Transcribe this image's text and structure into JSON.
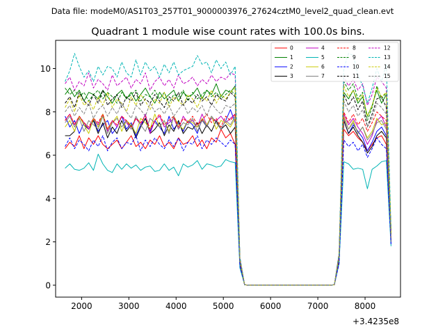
{
  "figure": {
    "suptitle": "Data file: modeM0/AS1T03_257T01_9000003976_27624cztM0_level2_quad_clean.evt"
  },
  "chart_data": {
    "type": "line",
    "title": "Quadrant 1 module wise count rates with 100.0s bins.",
    "xlabel": "",
    "ylabel": "",
    "x_offset_label": "+3.4235e8",
    "xlim": [
      1450,
      8750
    ],
    "ylim": [
      -0.55,
      11.3
    ],
    "xticks": [
      2000,
      3000,
      4000,
      5000,
      6000,
      7000,
      8000
    ],
    "yticks": [
      0,
      2,
      4,
      6,
      8,
      10
    ],
    "legend_position": "upper-right",
    "legend_columns": 4,
    "x": [
      1650,
      1750,
      1850,
      1950,
      2050,
      2150,
      2250,
      2350,
      2450,
      2550,
      2650,
      2750,
      2850,
      2950,
      3050,
      3150,
      3250,
      3350,
      3450,
      3550,
      3650,
      3750,
      3850,
      3950,
      4050,
      4150,
      4250,
      4350,
      4450,
      4550,
      4650,
      4750,
      4850,
      4950,
      5050,
      5150,
      5250,
      5350,
      5450,
      5550,
      5650,
      5750,
      5850,
      5950,
      6050,
      6150,
      6250,
      6350,
      6450,
      6550,
      6650,
      6750,
      6850,
      6950,
      7050,
      7150,
      7250,
      7350,
      7450,
      7550,
      7650,
      7750,
      7850,
      7950,
      8050,
      8150,
      8250,
      8350,
      8450,
      8550
    ],
    "series": [
      {
        "name": "0",
        "color": "#ff0000",
        "dash": "",
        "values": [
          6.3,
          6.6,
          6.4,
          6.9,
          6.3,
          6.8,
          6.5,
          6.9,
          6.5,
          6.3,
          6.5,
          6.7,
          6.3,
          6.6,
          6.9,
          6.4,
          6.6,
          6.3,
          6.7,
          6.5,
          6.9,
          6.4,
          6.6,
          6.3,
          6.8,
          6.5,
          6.6,
          6.9,
          6.4,
          6.7,
          6.3,
          6.8,
          6.6,
          7.2,
          6.8,
          7.0,
          6.5,
          1.0,
          0.02,
          0,
          0,
          0,
          0,
          0,
          0,
          0,
          0,
          0,
          0,
          0,
          0,
          0,
          0,
          0,
          0,
          0,
          0,
          0.02,
          1.2,
          7.2,
          6.9,
          7.1,
          6.8,
          6.6,
          6.2,
          6.5,
          6.8,
          6.9,
          6.5,
          2.0
        ]
      },
      {
        "name": "1",
        "color": "#008000",
        "dash": "",
        "values": [
          8.8,
          9.1,
          8.7,
          9.0,
          8.5,
          8.9,
          8.8,
          8.6,
          9.0,
          8.7,
          8.4,
          8.8,
          9.0,
          8.6,
          8.9,
          8.5,
          8.8,
          9.1,
          8.7,
          8.4,
          8.9,
          8.6,
          8.8,
          9.0,
          8.5,
          8.9,
          8.7,
          8.8,
          9.1,
          8.6,
          9.0,
          8.8,
          9.3,
          8.7,
          9.0,
          8.9,
          9.2,
          1.2,
          0.02,
          0,
          0,
          0,
          0,
          0,
          0,
          0,
          0,
          0,
          0,
          0,
          0,
          0,
          0,
          0,
          0,
          0,
          0,
          0.02,
          1.4,
          8.9,
          8.6,
          9.0,
          8.4,
          8.7,
          7.8,
          8.3,
          9.0,
          8.4,
          8.8,
          2.5
        ]
      },
      {
        "name": "2",
        "color": "#0000ff",
        "dash": "",
        "values": [
          7.8,
          7.3,
          7.6,
          7.0,
          7.5,
          7.2,
          7.7,
          7.1,
          7.4,
          7.6,
          7.0,
          7.3,
          7.8,
          7.2,
          7.5,
          6.9,
          7.4,
          7.7,
          7.1,
          7.6,
          7.3,
          7.0,
          7.8,
          7.2,
          7.5,
          7.1,
          7.6,
          7.4,
          7.0,
          7.7,
          7.3,
          7.8,
          7.5,
          7.2,
          7.6,
          8.1,
          7.5,
          1.0,
          0.02,
          0,
          0,
          0,
          0,
          0,
          0,
          0,
          0,
          0,
          0,
          0,
          0,
          0,
          0,
          0,
          0,
          0,
          0,
          0.02,
          1.2,
          7.6,
          7.0,
          7.4,
          7.1,
          6.8,
          6.2,
          6.6,
          7.1,
          7.3,
          6.9,
          1.9
        ]
      },
      {
        "name": "3",
        "color": "#000000",
        "dash": "",
        "values": [
          6.9,
          6.9,
          7.1,
          7.8,
          7.4,
          7.2,
          7.6,
          7.0,
          7.5,
          6.8,
          7.3,
          7.0,
          7.6,
          7.1,
          7.4,
          6.8,
          7.3,
          7.7,
          7.0,
          7.2,
          7.5,
          6.9,
          7.4,
          7.1,
          7.6,
          7.0,
          7.3,
          7.2,
          7.5,
          7.0,
          7.4,
          7.1,
          7.6,
          7.2,
          7.4,
          7.0,
          7.3,
          1.0,
          0.02,
          0,
          0,
          0,
          0,
          0,
          0,
          0,
          0,
          0,
          0,
          0,
          0,
          0,
          0,
          0,
          0,
          0,
          0,
          0.02,
          1.2,
          7.6,
          7.0,
          7.3,
          6.9,
          6.6,
          6.1,
          6.4,
          6.9,
          7.1,
          6.8,
          2.0
        ]
      },
      {
        "name": "4",
        "color": "#c000c0",
        "dash": "",
        "values": [
          7.6,
          7.9,
          7.4,
          7.8,
          7.5,
          7.2,
          7.7,
          7.4,
          7.9,
          7.1,
          7.6,
          7.3,
          7.8,
          7.5,
          7.2,
          7.7,
          7.4,
          7.9,
          7.0,
          7.6,
          7.8,
          7.3,
          7.5,
          7.7,
          7.2,
          7.8,
          7.5,
          7.6,
          7.3,
          7.9,
          7.4,
          7.7,
          7.6,
          7.8,
          7.5,
          7.7,
          7.9,
          1.1,
          0.02,
          0,
          0,
          0,
          0,
          0,
          0,
          0,
          0,
          0,
          0,
          0,
          0,
          0,
          0,
          0,
          0,
          0,
          0,
          0.02,
          1.3,
          7.9,
          7.4,
          7.7,
          7.3,
          7.0,
          6.5,
          6.9,
          7.6,
          7.8,
          7.3,
          2.1
        ]
      },
      {
        "name": "5",
        "color": "#00b4b4",
        "dash": "",
        "values": [
          5.4,
          5.6,
          5.35,
          5.3,
          5.4,
          5.65,
          5.3,
          6.05,
          5.6,
          5.3,
          5.2,
          5.6,
          5.35,
          5.6,
          5.4,
          5.55,
          5.3,
          5.45,
          5.5,
          5.25,
          5.3,
          5.6,
          5.3,
          5.45,
          5.05,
          5.6,
          5.45,
          5.55,
          5.75,
          5.35,
          5.6,
          5.55,
          5.45,
          5.5,
          5.8,
          5.7,
          5.65,
          0.8,
          0.02,
          0,
          0,
          0,
          0,
          0,
          0,
          0,
          0,
          0,
          0,
          0,
          0,
          0,
          0,
          0,
          0,
          0,
          0,
          0.02,
          1.0,
          5.7,
          5.6,
          5.35,
          5.4,
          5.35,
          4.45,
          5.35,
          5.5,
          5.7,
          5.75,
          1.8
        ]
      },
      {
        "name": "6",
        "color": "#c8c800",
        "dash": "",
        "values": [
          7.3,
          7.6,
          7.1,
          7.8,
          7.4,
          7.0,
          7.7,
          7.3,
          7.9,
          7.2,
          7.5,
          7.8,
          7.1,
          7.6,
          7.4,
          7.0,
          7.7,
          7.5,
          7.2,
          7.9,
          7.3,
          7.6,
          7.1,
          7.8,
          7.4,
          7.2,
          7.6,
          7.5,
          7.3,
          7.7,
          7.4,
          7.8,
          7.2,
          7.6,
          7.5,
          7.3,
          7.7,
          1.1,
          0.02,
          0,
          0,
          0,
          0,
          0,
          0,
          0,
          0,
          0,
          0,
          0,
          0,
          0,
          0,
          0,
          0,
          0,
          0,
          0.02,
          1.3,
          7.8,
          7.2,
          7.6,
          7.0,
          7.3,
          6.8,
          7.1,
          7.7,
          7.4,
          7.5,
          2.1
        ]
      },
      {
        "name": "7",
        "color": "#808080",
        "dash": "",
        "values": [
          7.5,
          7.8,
          7.3,
          7.7,
          7.1,
          7.6,
          7.4,
          7.2,
          7.8,
          7.0,
          7.5,
          7.7,
          7.3,
          7.6,
          7.2,
          7.8,
          7.4,
          7.1,
          7.7,
          7.5,
          7.3,
          7.6,
          7.0,
          7.8,
          7.2,
          7.5,
          7.4,
          7.7,
          7.1,
          7.6,
          7.3,
          7.8,
          7.5,
          7.2,
          7.6,
          7.4,
          7.8,
          1.1,
          0.02,
          0,
          0,
          0,
          0,
          0,
          0,
          0,
          0,
          0,
          0,
          0,
          0,
          0,
          0,
          0,
          0,
          0,
          0,
          0.02,
          1.3,
          7.7,
          7.2,
          7.5,
          7.0,
          7.3,
          6.7,
          7.0,
          7.5,
          7.6,
          7.2,
          2.0
        ]
      },
      {
        "name": "8",
        "color": "#ff0000",
        "dash": "4,2",
        "values": [
          7.6,
          7.9,
          7.4,
          7.8,
          7.5,
          7.3,
          7.7,
          7.5,
          7.9,
          7.2,
          7.6,
          7.4,
          7.8,
          7.6,
          7.3,
          7.7,
          7.5,
          7.8,
          7.2,
          7.6,
          7.9,
          7.4,
          7.6,
          7.8,
          7.3,
          7.7,
          7.5,
          7.8,
          7.4,
          7.6,
          7.9,
          7.5,
          7.7,
          7.3,
          7.8,
          7.6,
          7.9,
          1.1,
          0.02,
          0,
          0,
          0,
          0,
          0,
          0,
          0,
          0,
          0,
          0,
          0,
          0,
          0,
          0,
          0,
          0,
          0,
          0,
          0.02,
          1.3,
          8.0,
          7.5,
          7.9,
          7.4,
          7.7,
          7.1,
          7.5,
          8.0,
          7.8,
          7.6,
          2.2
        ]
      },
      {
        "name": "9",
        "color": "#008000",
        "dash": "4,2",
        "values": [
          9.1,
          8.8,
          9.0,
          8.7,
          8.9,
          8.5,
          8.8,
          9.0,
          8.6,
          8.9,
          8.7,
          8.4,
          8.9,
          8.6,
          8.8,
          9.0,
          8.5,
          8.8,
          8.7,
          9.0,
          8.6,
          8.9,
          8.4,
          8.8,
          8.7,
          9.0,
          8.5,
          8.9,
          8.6,
          8.8,
          9.0,
          8.7,
          8.9,
          8.6,
          8.8,
          9.0,
          8.8,
          1.2,
          0.02,
          0,
          0,
          0,
          0,
          0,
          0,
          0,
          0,
          0,
          0,
          0,
          0,
          0,
          0,
          0,
          0,
          0,
          0,
          0.02,
          1.4,
          9.4,
          9.0,
          9.3,
          8.6,
          8.9,
          7.6,
          8.2,
          9.2,
          8.6,
          8.9,
          2.4
        ]
      },
      {
        "name": "10",
        "color": "#0000ff",
        "dash": "4,2",
        "values": [
          6.4,
          6.8,
          6.3,
          6.7,
          6.5,
          6.2,
          6.7,
          6.4,
          6.9,
          6.2,
          6.6,
          6.8,
          6.3,
          6.6,
          6.5,
          6.9,
          6.2,
          6.7,
          6.4,
          6.8,
          6.5,
          6.3,
          6.7,
          6.4,
          6.8,
          6.2,
          6.6,
          6.5,
          6.9,
          6.3,
          6.7,
          6.5,
          6.8,
          6.6,
          6.4,
          6.7,
          6.5,
          0.9,
          0.02,
          0,
          0,
          0,
          0,
          0,
          0,
          0,
          0,
          0,
          0,
          0,
          0,
          0,
          0,
          0,
          0,
          0,
          0,
          0.02,
          1.0,
          6.7,
          6.4,
          6.6,
          6.2,
          6.5,
          5.9,
          6.3,
          6.8,
          6.5,
          6.3,
          1.9
        ]
      },
      {
        "name": "11",
        "color": "#000000",
        "dash": "4,2",
        "values": [
          8.4,
          8.7,
          8.2,
          8.9,
          8.5,
          8.3,
          8.8,
          8.4,
          9.0,
          8.3,
          8.6,
          8.8,
          8.2,
          8.7,
          8.5,
          8.9,
          8.3,
          8.6,
          8.4,
          8.8,
          8.5,
          8.2,
          8.7,
          8.5,
          8.9,
          8.3,
          8.6,
          8.4,
          8.8,
          8.5,
          8.7,
          8.3,
          8.8,
          8.6,
          8.5,
          8.9,
          8.7,
          1.2,
          0.02,
          0,
          0,
          0,
          0,
          0,
          0,
          0,
          0,
          0,
          0,
          0,
          0,
          0,
          0,
          0,
          0,
          0,
          0,
          0.02,
          1.4,
          8.8,
          8.3,
          8.7,
          8.1,
          8.5,
          7.3,
          7.9,
          8.6,
          8.7,
          8.2,
          2.3
        ]
      },
      {
        "name": "12",
        "color": "#c000c0",
        "dash": "4,2",
        "values": [
          9.3,
          9.6,
          9.0,
          9.4,
          9.2,
          9.8,
          9.1,
          9.5,
          9.3,
          9.0,
          9.7,
          9.2,
          9.4,
          9.6,
          9.1,
          9.5,
          9.3,
          9.8,
          9.0,
          9.4,
          9.6,
          9.2,
          9.5,
          9.1,
          9.7,
          9.3,
          9.4,
          9.6,
          9.2,
          9.5,
          9.3,
          9.7,
          9.4,
          9.6,
          9.5,
          9.8,
          9.7,
          1.3,
          0.02,
          0,
          0,
          0,
          0,
          0,
          0,
          0,
          0,
          0,
          0,
          0,
          0,
          0,
          0,
          0,
          0,
          0,
          0,
          0.02,
          1.5,
          9.6,
          9.2,
          9.5,
          9.0,
          9.3,
          8.3,
          8.8,
          9.6,
          9.4,
          9.1,
          2.5
        ]
      },
      {
        "name": "13",
        "color": "#00b4b4",
        "dash": "4,2",
        "values": [
          9.4,
          9.9,
          10.7,
          10.1,
          9.6,
          9.9,
          9.4,
          10.1,
          9.7,
          10.1,
          10.0,
          9.6,
          10.3,
          9.8,
          9.6,
          10.4,
          9.7,
          10.3,
          9.9,
          10.1,
          9.6,
          10.2,
          9.8,
          10.3,
          9.7,
          9.9,
          10.0,
          10.1,
          10.6,
          10.2,
          10.3,
          9.8,
          10.4,
          10.0,
          10.3,
          9.7,
          10.1,
          1.3,
          0.02,
          0,
          0,
          0,
          0,
          0,
          0,
          0,
          0,
          0,
          0,
          0,
          0,
          0,
          0,
          0,
          0,
          0,
          0,
          0.02,
          1.5,
          10.0,
          10.7,
          10.6,
          9.7,
          9.2,
          8.4,
          9.1,
          10.0,
          9.4,
          10.2,
          2.6
        ]
      },
      {
        "name": "14",
        "color": "#c8c800",
        "dash": "4,2",
        "values": [
          8.2,
          8.6,
          8.0,
          8.8,
          8.3,
          8.5,
          8.1,
          8.7,
          8.3,
          8.9,
          8.2,
          8.6,
          8.4,
          8.0,
          8.7,
          8.3,
          8.8,
          8.5,
          8.1,
          8.6,
          8.4,
          8.9,
          8.2,
          8.7,
          8.5,
          8.3,
          8.8,
          8.6,
          8.2,
          8.7,
          8.5,
          9.0,
          8.4,
          8.8,
          8.6,
          8.9,
          9.1,
          1.2,
          0.02,
          0,
          0,
          0,
          0,
          0,
          0,
          0,
          0,
          0,
          0,
          0,
          0,
          0,
          0,
          0,
          0,
          0,
          0,
          0.02,
          1.4,
          9.2,
          8.7,
          9.0,
          8.5,
          8.8,
          7.8,
          8.3,
          9.1,
          8.7,
          8.9,
          2.4
        ]
      },
      {
        "name": "15",
        "color": "#808080",
        "dash": "4,2",
        "values": [
          8.0,
          8.3,
          7.8,
          8.2,
          7.9,
          8.4,
          7.7,
          8.1,
          8.3,
          7.8,
          8.2,
          7.9,
          8.4,
          8.0,
          7.7,
          8.3,
          8.1,
          7.8,
          8.4,
          8.0,
          8.2,
          7.9,
          8.3,
          7.8,
          8.1,
          8.4,
          7.9,
          8.2,
          8.0,
          8.3,
          7.8,
          8.4,
          8.1,
          7.9,
          8.3,
          8.2,
          8.4,
          1.2,
          0.02,
          0,
          0,
          0,
          0,
          0,
          0,
          0,
          0,
          0,
          0,
          0,
          0,
          0,
          0,
          0,
          0,
          0,
          0,
          0.02,
          1.4,
          8.5,
          8.0,
          8.3,
          7.8,
          8.1,
          7.3,
          7.7,
          8.4,
          8.2,
          7.9,
          2.2
        ]
      }
    ]
  }
}
